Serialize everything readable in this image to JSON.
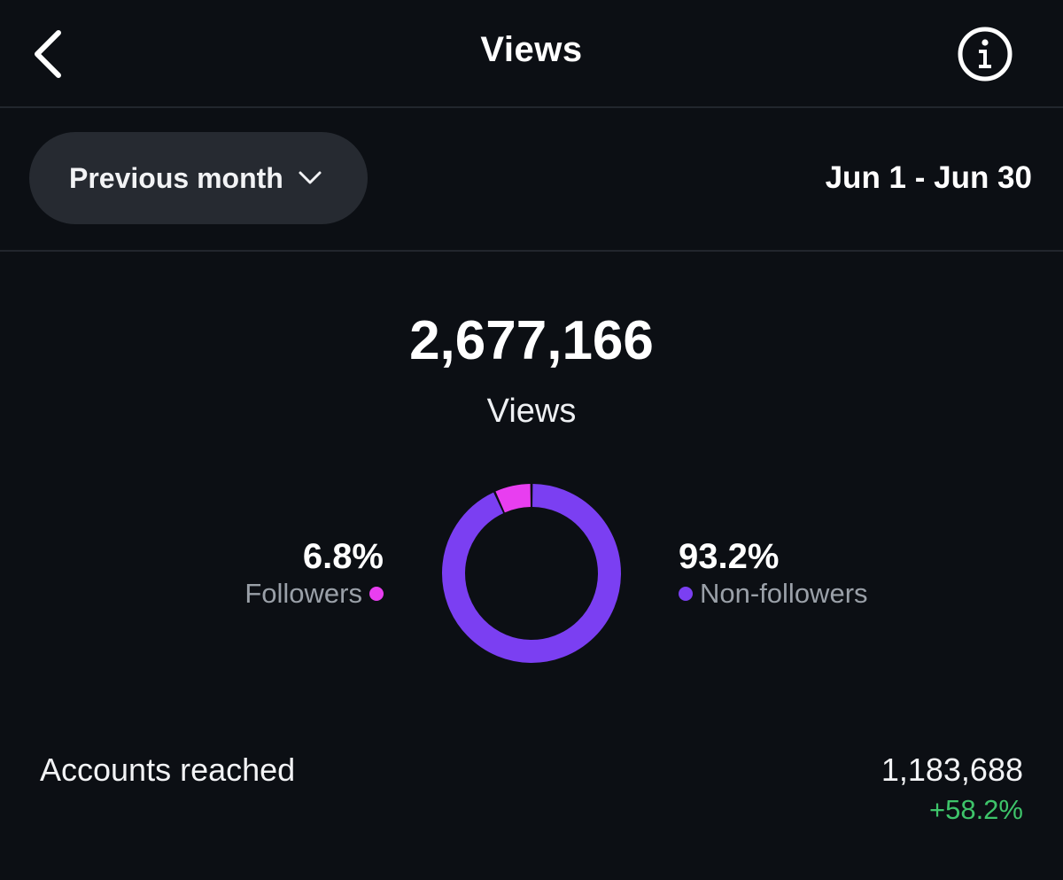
{
  "header": {
    "title": "Views",
    "back_icon": "chevron-left-icon",
    "info_icon": "info-icon"
  },
  "filter": {
    "period_label": "Previous month",
    "period_icon": "chevron-down-icon",
    "date_range": "Jun 1 - Jun 30"
  },
  "summary": {
    "total": "2,677,166",
    "label": "Views"
  },
  "breakdown": {
    "followers": {
      "percent": "6.8%",
      "label": "Followers",
      "color": "#e83ef0"
    },
    "non_followers": {
      "percent": "93.2%",
      "label": "Non-followers",
      "color": "#7b3ff2"
    }
  },
  "chart_data": {
    "type": "pie",
    "categories": [
      "Followers",
      "Non-followers"
    ],
    "values": [
      6.8,
      93.2
    ],
    "colors": [
      "#e83ef0",
      "#7b3ff2"
    ]
  },
  "metrics": [
    {
      "label": "Accounts reached",
      "value": "1,183,688",
      "change": "+58.2%",
      "change_color": "#3ec46a"
    }
  ]
}
